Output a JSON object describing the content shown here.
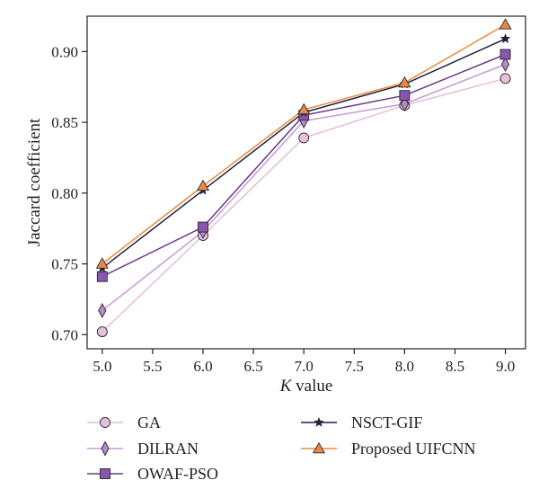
{
  "chart_data": {
    "type": "line",
    "xlabel_italic": "K",
    "xlabel_rest": " value",
    "ylabel": "Jaccard coefficient",
    "xlim": [
      4.85,
      9.2
    ],
    "ylim": [
      0.69,
      0.925
    ],
    "xticks": [
      "5.0",
      "5.5",
      "6.0",
      "6.5",
      "7.0",
      "7.5",
      "8.0",
      "8.5",
      "9.0"
    ],
    "yticks": [
      "0.70",
      "0.75",
      "0.80",
      "0.85",
      "0.90"
    ],
    "x": [
      5,
      6,
      7,
      8,
      9
    ],
    "grid": false,
    "legend_position": "bottom",
    "series": [
      {
        "name": "GA",
        "values": [
          0.702,
          0.77,
          0.839,
          0.862,
          0.881
        ],
        "line_color": "#e6bcd9",
        "marker": "circle",
        "marker_fill": "#e8c0dc"
      },
      {
        "name": "DILRAN",
        "values": [
          0.717,
          0.773,
          0.851,
          0.863,
          0.891
        ],
        "line_color": "#c89ad8",
        "marker": "diamond",
        "marker_fill": "#b48bc8"
      },
      {
        "name": "OWAF-PSO",
        "values": [
          0.741,
          0.776,
          0.855,
          0.869,
          0.898
        ],
        "line_color": "#6a3a8a",
        "marker": "square",
        "marker_fill": "#8a55ad"
      },
      {
        "name": "NSCT-GIF",
        "values": [
          0.747,
          0.802,
          0.857,
          0.877,
          0.909
        ],
        "line_color": "#1e2240",
        "marker": "star",
        "marker_fill": "#1e2240"
      },
      {
        "name": "Proposed UIFCNN",
        "values": [
          0.75,
          0.805,
          0.859,
          0.878,
          0.919
        ],
        "line_color": "#ee8a3a",
        "marker": "triangle",
        "marker_fill": "#e8894a"
      }
    ]
  }
}
